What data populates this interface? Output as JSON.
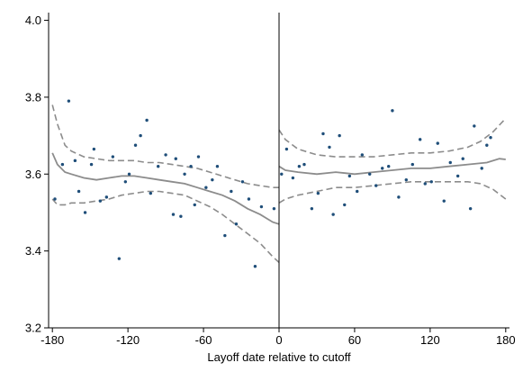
{
  "chart_data": {
    "type": "scatter",
    "title": "",
    "xlabel": "Layoff date relative to cutoff",
    "ylabel": "",
    "xlim": [
      -183,
      183
    ],
    "ylim": [
      3.2,
      4.02
    ],
    "xticks": [
      -180,
      -120,
      -60,
      0,
      60,
      120,
      180
    ],
    "yticks": [
      3.2,
      3.4,
      3.6,
      3.8,
      4.0
    ],
    "ytick_labels": [
      "3.2",
      "3.4",
      "3.6",
      "3.8",
      "4.0"
    ],
    "cutoff": 0,
    "grid": false,
    "legend": "none",
    "colors": {
      "points": "#1f4e79",
      "fit": "#8c8c8c",
      "ci": "#8c8c8c",
      "axis": "#000000"
    },
    "series": [
      {
        "kind": "points",
        "points": [
          [
            -178,
            3.535
          ],
          [
            -172,
            3.625
          ],
          [
            -167,
            3.79
          ],
          [
            -162,
            3.635
          ],
          [
            -159,
            3.555
          ],
          [
            -154,
            3.5
          ],
          [
            -149,
            3.625
          ],
          [
            -147,
            3.665
          ],
          [
            -142,
            3.53
          ],
          [
            -137,
            3.54
          ],
          [
            -132,
            3.645
          ],
          [
            -127,
            3.38
          ],
          [
            -122,
            3.58
          ],
          [
            -119,
            3.6
          ],
          [
            -114,
            3.675
          ],
          [
            -110,
            3.7
          ],
          [
            -105,
            3.74
          ],
          [
            -102,
            3.55
          ],
          [
            -96,
            3.62
          ],
          [
            -90,
            3.65
          ],
          [
            -84,
            3.495
          ],
          [
            -82,
            3.64
          ],
          [
            -78,
            3.49
          ],
          [
            -75,
            3.6
          ],
          [
            -70,
            3.62
          ],
          [
            -67,
            3.52
          ],
          [
            -64,
            3.645
          ],
          [
            -58,
            3.565
          ],
          [
            -53,
            3.585
          ],
          [
            -49,
            3.62
          ],
          [
            -43,
            3.44
          ],
          [
            -38,
            3.555
          ],
          [
            -34,
            3.47
          ],
          [
            -29,
            3.58
          ],
          [
            -24,
            3.535
          ],
          [
            -19,
            3.36
          ],
          [
            -14,
            3.515
          ],
          [
            -4,
            3.51
          ],
          [
            2,
            3.6
          ],
          [
            6,
            3.665
          ],
          [
            11,
            3.59
          ],
          [
            16,
            3.62
          ],
          [
            20,
            3.625
          ],
          [
            26,
            3.51
          ],
          [
            31,
            3.55
          ],
          [
            35,
            3.705
          ],
          [
            40,
            3.67
          ],
          [
            43,
            3.495
          ],
          [
            48,
            3.7
          ],
          [
            52,
            3.52
          ],
          [
            56,
            3.595
          ],
          [
            62,
            3.555
          ],
          [
            66,
            3.65
          ],
          [
            72,
            3.6
          ],
          [
            77,
            3.57
          ],
          [
            82,
            3.615
          ],
          [
            87,
            3.62
          ],
          [
            90,
            3.765
          ],
          [
            95,
            3.54
          ],
          [
            101,
            3.585
          ],
          [
            106,
            3.625
          ],
          [
            112,
            3.69
          ],
          [
            116,
            3.575
          ],
          [
            121,
            3.58
          ],
          [
            126,
            3.68
          ],
          [
            131,
            3.53
          ],
          [
            136,
            3.63
          ],
          [
            142,
            3.595
          ],
          [
            146,
            3.64
          ],
          [
            152,
            3.51
          ],
          [
            155,
            3.725
          ],
          [
            161,
            3.615
          ],
          [
            165,
            3.675
          ],
          [
            168,
            3.695
          ]
        ]
      },
      {
        "kind": "fit-left",
        "points": [
          [
            -180,
            3.655
          ],
          [
            -176,
            3.625
          ],
          [
            -170,
            3.605
          ],
          [
            -165,
            3.6
          ],
          [
            -155,
            3.59
          ],
          [
            -145,
            3.585
          ],
          [
            -135,
            3.59
          ],
          [
            -125,
            3.595
          ],
          [
            -115,
            3.595
          ],
          [
            -105,
            3.59
          ],
          [
            -95,
            3.585
          ],
          [
            -85,
            3.58
          ],
          [
            -75,
            3.575
          ],
          [
            -65,
            3.565
          ],
          [
            -55,
            3.555
          ],
          [
            -45,
            3.545
          ],
          [
            -35,
            3.53
          ],
          [
            -25,
            3.51
          ],
          [
            -15,
            3.495
          ],
          [
            -5,
            3.475
          ],
          [
            0,
            3.47
          ]
        ]
      },
      {
        "kind": "ci-upper-left",
        "points": [
          [
            -180,
            3.78
          ],
          [
            -176,
            3.73
          ],
          [
            -170,
            3.675
          ],
          [
            -165,
            3.66
          ],
          [
            -155,
            3.645
          ],
          [
            -145,
            3.64
          ],
          [
            -135,
            3.635
          ],
          [
            -125,
            3.635
          ],
          [
            -115,
            3.635
          ],
          [
            -105,
            3.63
          ],
          [
            -95,
            3.63
          ],
          [
            -85,
            3.625
          ],
          [
            -75,
            3.62
          ],
          [
            -65,
            3.615
          ],
          [
            -55,
            3.605
          ],
          [
            -45,
            3.595
          ],
          [
            -35,
            3.585
          ],
          [
            -25,
            3.575
          ],
          [
            -15,
            3.57
          ],
          [
            -5,
            3.565
          ],
          [
            0,
            3.565
          ]
        ]
      },
      {
        "kind": "ci-lower-left",
        "points": [
          [
            -180,
            3.535
          ],
          [
            -176,
            3.52
          ],
          [
            -170,
            3.52
          ],
          [
            -165,
            3.525
          ],
          [
            -155,
            3.525
          ],
          [
            -145,
            3.53
          ],
          [
            -135,
            3.535
          ],
          [
            -125,
            3.545
          ],
          [
            -115,
            3.55
          ],
          [
            -105,
            3.555
          ],
          [
            -95,
            3.555
          ],
          [
            -85,
            3.55
          ],
          [
            -75,
            3.545
          ],
          [
            -65,
            3.53
          ],
          [
            -55,
            3.515
          ],
          [
            -45,
            3.495
          ],
          [
            -35,
            3.47
          ],
          [
            -25,
            3.445
          ],
          [
            -15,
            3.42
          ],
          [
            -5,
            3.385
          ],
          [
            0,
            3.37
          ]
        ]
      },
      {
        "kind": "fit-right",
        "points": [
          [
            0,
            3.62
          ],
          [
            5,
            3.61
          ],
          [
            15,
            3.605
          ],
          [
            30,
            3.6
          ],
          [
            45,
            3.605
          ],
          [
            60,
            3.6
          ],
          [
            75,
            3.605
          ],
          [
            90,
            3.61
          ],
          [
            105,
            3.615
          ],
          [
            120,
            3.615
          ],
          [
            135,
            3.62
          ],
          [
            150,
            3.625
          ],
          [
            165,
            3.63
          ],
          [
            175,
            3.64
          ],
          [
            180,
            3.638
          ]
        ]
      },
      {
        "kind": "ci-upper-right",
        "points": [
          [
            0,
            3.715
          ],
          [
            5,
            3.69
          ],
          [
            15,
            3.665
          ],
          [
            30,
            3.65
          ],
          [
            45,
            3.645
          ],
          [
            60,
            3.645
          ],
          [
            75,
            3.645
          ],
          [
            90,
            3.65
          ],
          [
            105,
            3.655
          ],
          [
            120,
            3.655
          ],
          [
            135,
            3.66
          ],
          [
            150,
            3.67
          ],
          [
            160,
            3.685
          ],
          [
            170,
            3.71
          ],
          [
            180,
            3.745
          ]
        ]
      },
      {
        "kind": "ci-lower-right",
        "points": [
          [
            0,
            3.525
          ],
          [
            5,
            3.535
          ],
          [
            15,
            3.545
          ],
          [
            30,
            3.555
          ],
          [
            45,
            3.565
          ],
          [
            60,
            3.565
          ],
          [
            75,
            3.57
          ],
          [
            90,
            3.575
          ],
          [
            105,
            3.58
          ],
          [
            120,
            3.58
          ],
          [
            135,
            3.58
          ],
          [
            150,
            3.58
          ],
          [
            160,
            3.575
          ],
          [
            170,
            3.56
          ],
          [
            180,
            3.535
          ]
        ]
      }
    ]
  }
}
